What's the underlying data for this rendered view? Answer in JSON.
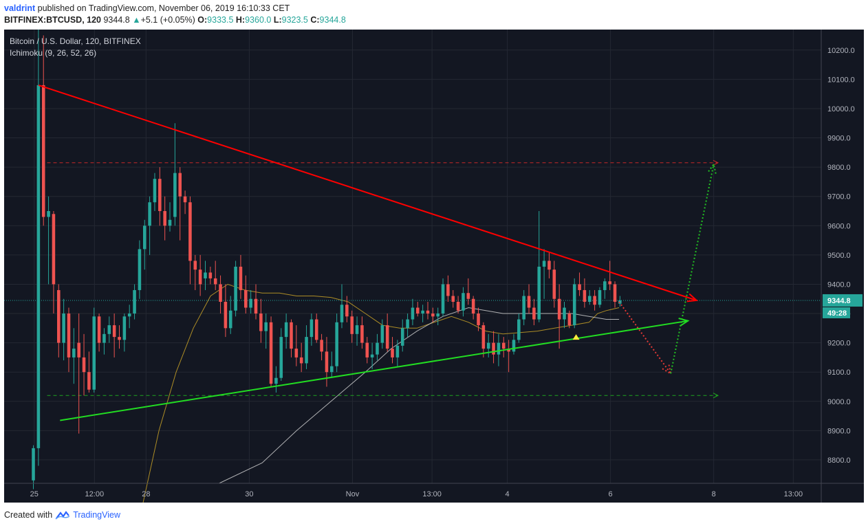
{
  "header": {
    "author": "valdrint",
    "published_text": " published on TradingView.com, November 06, 2019 16:10:33 CET",
    "symbol": "BITFINEX:BTCUSD, 120",
    "last": "9344.8",
    "change_arrow": "▲",
    "change": "+5.1 (+0.05%)",
    "o_label": "O:",
    "o_value": "9333.5",
    "h_label": "H:",
    "h_value": "9360.0",
    "l_label": "L:",
    "l_value": "9323.5",
    "c_label": "C:",
    "c_value": "9344.8"
  },
  "legend": {
    "title": "Bitcoin / U.S. Dollar, 120, BITFINEX",
    "indicator": "Ichimoku (9, 26, 52, 26)"
  },
  "footer": {
    "created_with": "Created with",
    "brand": "TradingView"
  },
  "colors": {
    "background": "#131722",
    "grid": "#242833",
    "text": "#b2b5be",
    "up": "#26a69a",
    "down": "#ef5350",
    "resistance": "#ff0000",
    "support": "#22dd22",
    "current_price": "#26a69a",
    "cloud_a": "#c9a227",
    "cloud_b": "#d8d8d8"
  },
  "chart_data": {
    "type": "candlestick",
    "ylim": [
      8720,
      10270
    ],
    "y_ticks": [
      8800,
      8900,
      9000,
      9100,
      9200,
      9300,
      9400,
      9500,
      9600,
      9700,
      9800,
      9900,
      10000,
      10100,
      10200
    ],
    "y_tick_labels": [
      "8800.0",
      "8900.0",
      "9000.0",
      "9100.0",
      "9200.0",
      "9300.0",
      "9400.0",
      "9500.0",
      "9600.0",
      "9700.0",
      "9800.0",
      "9900.0",
      "10000.0",
      "10100.0",
      "10200.0"
    ],
    "x_ticks": [
      {
        "label": "25",
        "t": -2
      },
      {
        "label": "12:00",
        "t": 12
      },
      {
        "label": "28",
        "t": 24
      },
      {
        "label": "30",
        "t": 48
      },
      {
        "label": "Nov",
        "t": 72
      },
      {
        "label": "13:00",
        "t": 90.5
      },
      {
        "label": "4",
        "t": 108
      },
      {
        "label": "6",
        "t": 132
      },
      {
        "label": "8",
        "t": 156
      },
      {
        "label": "13:00",
        "t": 174.5
      }
    ],
    "x_range": [
      -9,
      181
    ],
    "current_price": 9344.8,
    "current_price_label": "9344.8",
    "countdown_label": "49:28",
    "candles": [
      [
        8730,
        8850,
        8700,
        8840
      ],
      [
        8840,
        10270,
        8780,
        10080
      ],
      [
        10080,
        10250,
        9600,
        9630
      ],
      [
        9630,
        9700,
        9400,
        9650
      ],
      [
        9640,
        9650,
        9300,
        9400
      ],
      [
        9380,
        9400,
        9150,
        9200
      ],
      [
        9200,
        9350,
        9140,
        9300
      ],
      [
        9300,
        9320,
        9100,
        9150
      ],
      [
        9150,
        9250,
        9060,
        9180
      ],
      [
        9200,
        9300,
        8890,
        9150
      ],
      [
        9150,
        9230,
        9020,
        9100
      ],
      [
        9100,
        9170,
        9030,
        9040
      ],
      [
        9040,
        9320,
        9030,
        9290
      ],
      [
        9290,
        9300,
        9170,
        9200
      ],
      [
        9200,
        9250,
        9160,
        9230
      ],
      [
        9230,
        9290,
        9200,
        9260
      ],
      [
        9260,
        9300,
        9150,
        9220
      ],
      [
        9220,
        9260,
        9180,
        9210
      ],
      [
        9210,
        9300,
        9170,
        9290
      ],
      [
        9290,
        9330,
        9250,
        9300
      ],
      [
        9300,
        9400,
        9280,
        9380
      ],
      [
        9380,
        9550,
        9350,
        9520
      ],
      [
        9520,
        9620,
        9450,
        9600
      ],
      [
        9600,
        9700,
        9500,
        9680
      ],
      [
        9680,
        9780,
        9650,
        9760
      ],
      [
        9760,
        9800,
        9600,
        9650
      ],
      [
        9650,
        9700,
        9550,
        9600
      ],
      [
        9600,
        9680,
        9580,
        9620
      ],
      [
        9630,
        9950,
        9600,
        9780
      ],
      [
        9780,
        9800,
        9550,
        9700
      ],
      [
        9700,
        9720,
        9640,
        9680
      ],
      [
        9680,
        9700,
        9400,
        9480
      ],
      [
        9480,
        9500,
        9380,
        9450
      ],
      [
        9450,
        9500,
        9360,
        9400
      ],
      [
        9420,
        9480,
        9380,
        9440
      ],
      [
        9440,
        9460,
        9400,
        9420
      ],
      [
        9420,
        9480,
        9380,
        9400
      ],
      [
        9400,
        9430,
        9300,
        9340
      ],
      [
        9340,
        9400,
        9220,
        9250
      ],
      [
        9250,
        9360,
        9230,
        9310
      ],
      [
        9310,
        9480,
        9290,
        9460
      ],
      [
        9460,
        9500,
        9350,
        9380
      ],
      [
        9380,
        9430,
        9300,
        9320
      ],
      [
        9320,
        9380,
        9300,
        9350
      ],
      [
        9350,
        9400,
        9280,
        9300
      ],
      [
        9300,
        9350,
        9200,
        9240
      ],
      [
        9240,
        9300,
        9180,
        9270
      ],
      [
        9270,
        9290,
        9050,
        9060
      ],
      [
        9060,
        9120,
        9030,
        9080
      ],
      [
        9080,
        9250,
        9070,
        9220
      ],
      [
        9220,
        9300,
        9180,
        9270
      ],
      [
        9270,
        9280,
        9150,
        9180
      ],
      [
        9180,
        9260,
        9120,
        9150
      ],
      [
        9150,
        9200,
        9100,
        9130
      ],
      [
        9130,
        9260,
        9110,
        9220
      ],
      [
        9220,
        9300,
        9190,
        9280
      ],
      [
        9280,
        9300,
        9200,
        9210
      ],
      [
        9210,
        9230,
        9140,
        9170
      ],
      [
        9170,
        9220,
        9050,
        9100
      ],
      [
        9100,
        9170,
        9080,
        9120
      ],
      [
        9120,
        9300,
        9100,
        9270
      ],
      [
        9270,
        9400,
        9250,
        9330
      ],
      [
        9330,
        9360,
        9270,
        9290
      ],
      [
        9290,
        9310,
        9200,
        9230
      ],
      [
        9230,
        9290,
        9190,
        9260
      ],
      [
        9260,
        9290,
        9180,
        9200
      ],
      [
        9200,
        9220,
        9130,
        9150
      ],
      [
        9150,
        9200,
        9110,
        9160
      ],
      [
        9160,
        9230,
        9140,
        9200
      ],
      [
        9200,
        9280,
        9180,
        9260
      ],
      [
        9260,
        9300,
        9170,
        9180
      ],
      [
        9180,
        9220,
        9130,
        9150
      ],
      [
        9150,
        9210,
        9120,
        9190
      ],
      [
        9190,
        9280,
        9170,
        9250
      ],
      [
        9250,
        9300,
        9220,
        9280
      ],
      [
        9280,
        9350,
        9260,
        9320
      ],
      [
        9320,
        9340,
        9290,
        9300
      ],
      [
        9300,
        9330,
        9270,
        9310
      ],
      [
        9310,
        9340,
        9280,
        9300
      ],
      [
        9300,
        9320,
        9270,
        9290
      ],
      [
        9290,
        9320,
        9260,
        9300
      ],
      [
        9300,
        9420,
        9290,
        9400
      ],
      [
        9400,
        9430,
        9340,
        9360
      ],
      [
        9360,
        9380,
        9320,
        9340
      ],
      [
        9340,
        9360,
        9300,
        9310
      ],
      [
        9310,
        9390,
        9290,
        9370
      ],
      [
        9370,
        9420,
        9330,
        9350
      ],
      [
        9350,
        9360,
        9280,
        9300
      ],
      [
        9300,
        9320,
        9240,
        9260
      ],
      [
        9260,
        9270,
        9150,
        9180
      ],
      [
        9180,
        9230,
        9150,
        9200
      ],
      [
        9200,
        9240,
        9130,
        9160
      ],
      [
        9160,
        9230,
        9120,
        9200
      ],
      [
        9200,
        9220,
        9150,
        9180
      ],
      [
        9180,
        9210,
        9100,
        9170
      ],
      [
        9170,
        9230,
        9160,
        9210
      ],
      [
        9210,
        9300,
        9200,
        9280
      ],
      [
        9280,
        9380,
        9260,
        9360
      ],
      [
        9360,
        9400,
        9300,
        9320
      ],
      [
        9320,
        9350,
        9260,
        9280
      ],
      [
        9280,
        9650,
        9270,
        9460
      ],
      [
        9460,
        9520,
        9350,
        9480
      ],
      [
        9480,
        9510,
        9420,
        9450
      ],
      [
        9450,
        9480,
        9320,
        9350
      ],
      [
        9350,
        9400,
        9180,
        9280
      ],
      [
        9280,
        9340,
        9250,
        9320
      ],
      [
        9300,
        9310,
        9250,
        9260
      ],
      [
        9260,
        9420,
        9250,
        9400
      ],
      [
        9400,
        9440,
        9360,
        9380
      ],
      [
        9380,
        9420,
        9320,
        9340
      ],
      [
        9340,
        9380,
        9330,
        9360
      ],
      [
        9360,
        9380,
        9310,
        9330
      ],
      [
        9330,
        9390,
        9320,
        9380
      ],
      [
        9380,
        9420,
        9350,
        9410
      ],
      [
        9410,
        9480,
        9380,
        9400
      ],
      [
        9400,
        9410,
        9320,
        9340
      ],
      [
        9333.5,
        9360,
        9323.5,
        9344.8
      ]
    ],
    "ichimoku_span_a": [
      [
        21,
        8500
      ],
      [
        27,
        8900
      ],
      [
        31,
        9100
      ],
      [
        35,
        9250
      ],
      [
        39,
        9360
      ],
      [
        43,
        9400
      ],
      [
        47,
        9380
      ],
      [
        51,
        9370
      ],
      [
        55,
        9370
      ],
      [
        59,
        9360
      ],
      [
        63,
        9360
      ],
      [
        67,
        9355
      ],
      [
        71,
        9340
      ],
      [
        75,
        9300
      ],
      [
        79,
        9260
      ],
      [
        83,
        9250
      ],
      [
        87,
        9250
      ],
      [
        91,
        9270
      ],
      [
        95,
        9290
      ],
      [
        99,
        9270
      ],
      [
        103,
        9240
      ],
      [
        107,
        9230
      ],
      [
        111,
        9235
      ],
      [
        115,
        9240
      ],
      [
        119,
        9250
      ],
      [
        123,
        9260
      ],
      [
        127,
        9270
      ],
      [
        129,
        9300
      ],
      [
        131,
        9310
      ],
      [
        134,
        9320
      ]
    ],
    "ichimoku_span_b": [
      [
        41,
        8720
      ],
      [
        51,
        8790
      ],
      [
        59,
        8900
      ],
      [
        67,
        9000
      ],
      [
        75,
        9100
      ],
      [
        81,
        9180
      ],
      [
        87,
        9240
      ],
      [
        93,
        9290
      ],
      [
        99,
        9320
      ],
      [
        103,
        9310
      ],
      [
        107,
        9300
      ],
      [
        113,
        9300
      ],
      [
        119,
        9300
      ],
      [
        123,
        9300
      ],
      [
        127,
        9290
      ],
      [
        131,
        9280
      ],
      [
        134,
        9280
      ]
    ],
    "annotations": {
      "resistance_line": [
        [
          -1,
          10080
        ],
        [
          152,
          9345
        ]
      ],
      "support_line": [
        [
          4,
          8935
        ],
        [
          150,
          9275
        ]
      ],
      "resistance_level": {
        "y": 9815,
        "x": [
          1,
          157
        ]
      },
      "support_level": {
        "y": 9020,
        "x": [
          1,
          157
        ]
      },
      "projection_down": [
        [
          134,
          9340
        ],
        [
          146,
          9095
        ]
      ],
      "projection_up": [
        [
          146,
          9095
        ],
        [
          156,
          9810
        ]
      ],
      "marker": {
        "x": 124,
        "y": 9220
      }
    }
  }
}
